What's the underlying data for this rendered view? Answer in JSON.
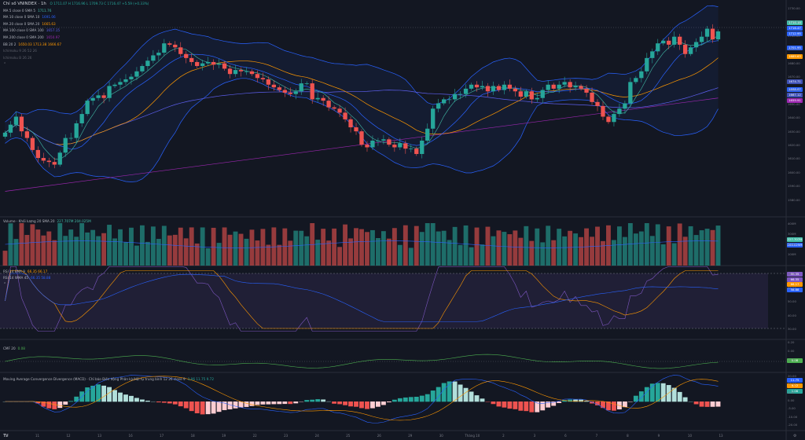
{
  "header": {
    "title": "Chỉ số VNINDEX · 1h",
    "ohlc": "O 1711.07 H 1716.96 L 1709.73 C 1716.47 +5.59 (+0.33%)"
  },
  "legend": [
    {
      "label": "MA 5 close 0 SMA 5",
      "value": "1711.76",
      "color": "#42bda8"
    },
    {
      "label": "MA 10 close 0 SMA 10",
      "value": "1691.06",
      "color": "#2962ff"
    },
    {
      "label": "MA 20 close 0 SMA 20",
      "value": "1665.63",
      "color": "#ff9800"
    },
    {
      "label": "MA 100 close 0 SMA 100",
      "value": "1657.15",
      "color": "#5d5fef"
    },
    {
      "label": "MA 200 close 0 SMA 200",
      "value": "1650.97",
      "color": "#9c27b0"
    },
    {
      "label": "BB 20 2",
      "value": "1650.03  1713.38  1666.67",
      "color": "#2962ff"
    },
    {
      "label": "Ichimoku 9 26 52 26",
      "value": "",
      "color": "#787b86"
    },
    {
      "label": "Ichimoku B 26 26",
      "value": "",
      "color": "#787b86"
    }
  ],
  "price_tags": [
    {
      "value": "1716.18",
      "color": "#42bda8"
    },
    {
      "value": "1716.47",
      "color": "#2962ff"
    },
    {
      "value": "1712.95",
      "color": "#2962ff"
    },
    {
      "value": "1701.95",
      "color": "#2962ff"
    },
    {
      "value": "1685.63",
      "color": "#ff9800"
    },
    {
      "value": "1674.71",
      "color": "#3f51b5"
    },
    {
      "value": "1668.67",
      "color": "#2962ff"
    },
    {
      "value": "1667.12",
      "color": "#3f51b5"
    },
    {
      "value": "1659.91",
      "color": "#9c27b0"
    }
  ],
  "volume_legend": {
    "title": "Volume · Khối lượng 20 SMA 20",
    "value": "227.707M  204.025M"
  },
  "volume_tags": [
    {
      "value": "227.707M",
      "color": "#42bda8"
    },
    {
      "value": "204.025M",
      "color": "#2962ff"
    }
  ],
  "rsi_legend": {
    "title1": "RSI 14 EMA 9",
    "v1": "66.35  66.17",
    "title2": "RSI 14 WMA 45",
    "v2": "66.35  58.88"
  },
  "rsi_tags": [
    {
      "value": "68.35",
      "color": "#7e57c2"
    },
    {
      "value": "66.35",
      "color": "#7e57c2"
    },
    {
      "value": "66.17",
      "color": "#ff9800"
    },
    {
      "value": "58.88",
      "color": "#2962ff"
    }
  ],
  "cmf_legend": {
    "title": "CMF 20",
    "value": "0.08"
  },
  "cmf_tags": [
    {
      "value": "0.08",
      "color": "#4caf50"
    }
  ],
  "macd_legend": {
    "title": "Moving Average Convergence Divergence (MACD) · Chỉ báo Biến động Phân kỳ/Hội tụ trung bình 12 26 close 9",
    "value": "1.06  11.75  9.72"
  },
  "macd_tags": [
    {
      "value": "11.75",
      "color": "#2962ff"
    },
    {
      "value": "9.72",
      "color": "#ff9800"
    },
    {
      "value": "1.06",
      "color": "#26a69a"
    }
  ],
  "axis_labels": {
    "price": [
      "1730.00",
      "1710.00",
      "1700.00",
      "1690.00",
      "1680.00",
      "1670.00",
      "1660.00",
      "1650.00",
      "1640.00",
      "1630.00",
      "1620.00",
      "1610.00",
      "1600.00",
      "1590.00",
      "1580.00"
    ],
    "volume": [
      "400M",
      "300M",
      "200M",
      "100M"
    ],
    "rsi": [
      "70.00",
      "60.00",
      "50.00",
      "40.00",
      "30.00"
    ],
    "cmf": [
      "0.20",
      "0.00",
      "-0.20"
    ],
    "macd": [
      "20.00",
      "10.00",
      "5.00",
      "0.00",
      "-5.00",
      "-10.00",
      "-20.00"
    ]
  },
  "time_labels": [
    "10",
    "11",
    "12",
    "13",
    "16",
    "17",
    "18",
    "19",
    "22",
    "23",
    "24",
    "25",
    "26",
    "29",
    "30",
    "Tháng 10",
    "2",
    "3",
    "6",
    "7",
    "8",
    "9",
    "10",
    "13"
  ],
  "chart_data": {
    "type": "candlestick",
    "title": "Chỉ số VNINDEX · 1h",
    "ylim": [
      1578,
      1736
    ],
    "closes": [
      1640,
      1646,
      1652,
      1641,
      1636,
      1627,
      1621,
      1619,
      1618,
      1616,
      1625,
      1636,
      1636,
      1647,
      1654,
      1664,
      1666,
      1668,
      1666,
      1675,
      1676,
      1678,
      1680,
      1682,
      1686,
      1690,
      1694,
      1698,
      1700,
      1707,
      1706,
      1704,
      1699,
      1696,
      1693,
      1690,
      1692,
      1693,
      1691,
      1692,
      1688,
      1684,
      1687,
      1686,
      1686,
      1684,
      1681,
      1680,
      1676,
      1674,
      1672,
      1670,
      1669,
      1671,
      1677,
      1677,
      1665,
      1666,
      1664,
      1659,
      1658,
      1655,
      1650,
      1644,
      1641,
      1631,
      1629,
      1634,
      1634,
      1635,
      1631,
      1629,
      1632,
      1628,
      1628,
      1624,
      1634,
      1643,
      1658,
      1662,
      1665,
      1665,
      1669,
      1669,
      1673,
      1676,
      1674,
      1675,
      1671,
      1675,
      1672,
      1676,
      1673,
      1671,
      1667,
      1671,
      1665,
      1666,
      1672,
      1676,
      1673,
      1676,
      1678,
      1674,
      1675,
      1673,
      1670,
      1663,
      1660,
      1652,
      1648,
      1654,
      1658,
      1662,
      1678,
      1681,
      1686,
      1696,
      1701,
      1707,
      1709,
      1706,
      1712,
      1706,
      1699,
      1704,
      1708,
      1712,
      1718,
      1710,
      1716
    ]
  }
}
